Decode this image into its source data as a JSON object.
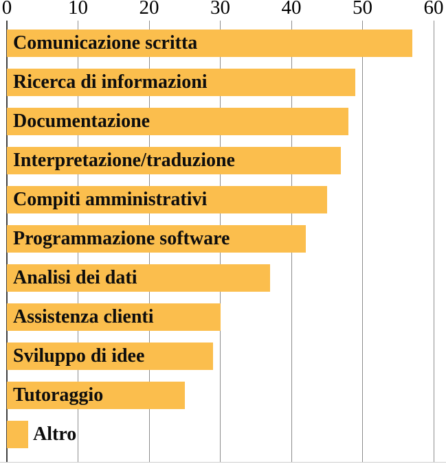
{
  "chart_data": {
    "type": "bar",
    "orientation": "horizontal",
    "title": "",
    "xlabel": "",
    "ylabel": "",
    "categories": [
      "Comunicazione scritta",
      "Ricerca di informazioni",
      "Documentazione",
      "Interpretazione/traduzione",
      "Compiti amministrativi",
      "Programmazione software",
      "Analisi dei dati",
      "Assistenza clienti",
      "Sviluppo di idee",
      "Tutoraggio",
      "Altro"
    ],
    "values": [
      57,
      49,
      48,
      47,
      45,
      42,
      37,
      30,
      29,
      25,
      3
    ],
    "xlim": [
      0,
      60
    ],
    "x_ticks": [
      0,
      10,
      20,
      30,
      40,
      50,
      60
    ],
    "grid": "vertical",
    "legend": "none",
    "label_position": "inside-left, outside for short bars",
    "colors": {
      "bar": "#fbbe4d",
      "gridline": "#8c8c8c",
      "zero_line": "#3f3f3f",
      "tick_text": "#000000",
      "bar_label_text": "#0d0d0d",
      "bottom_rule": "#cccccc"
    }
  }
}
